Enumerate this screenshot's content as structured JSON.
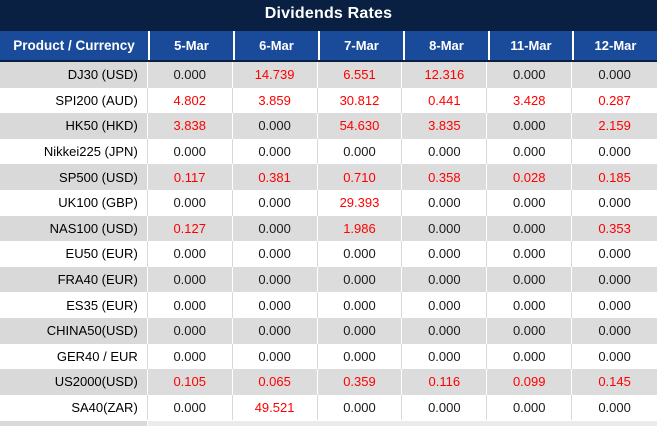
{
  "title": "Dividends Rates",
  "colors": {
    "title_background": "#0a2043",
    "header_background": "#1a4b9a",
    "banded_row_background": "#dcdcdc",
    "zero_value_text": "#1a1a1a",
    "nonzero_value_text": "#ff0000"
  },
  "table": {
    "product_header": "Product / Currency",
    "date_headers": [
      "5-Mar",
      "6-Mar",
      "7-Mar",
      "8-Mar",
      "11-Mar",
      "12-Mar"
    ],
    "rows": [
      {
        "product": "DJ30 (USD)",
        "values": [
          "0.000",
          "14.739",
          "6.551",
          "12.316",
          "0.000",
          "0.000"
        ]
      },
      {
        "product": "SPI200 (AUD)",
        "values": [
          "4.802",
          "3.859",
          "30.812",
          "0.441",
          "3.428",
          "0.287"
        ]
      },
      {
        "product": "HK50 (HKD)",
        "values": [
          "3.838",
          "0.000",
          "54.630",
          "3.835",
          "0.000",
          "2.159"
        ]
      },
      {
        "product": "Nikkei225 (JPN)",
        "values": [
          "0.000",
          "0.000",
          "0.000",
          "0.000",
          "0.000",
          "0.000"
        ]
      },
      {
        "product": "SP500 (USD)",
        "values": [
          "0.117",
          "0.381",
          "0.710",
          "0.358",
          "0.028",
          "0.185"
        ]
      },
      {
        "product": "UK100 (GBP)",
        "values": [
          "0.000",
          "0.000",
          "29.393",
          "0.000",
          "0.000",
          "0.000"
        ]
      },
      {
        "product": "NAS100 (USD)",
        "values": [
          "0.127",
          "0.000",
          "1.986",
          "0.000",
          "0.000",
          "0.353"
        ]
      },
      {
        "product": "EU50 (EUR)",
        "values": [
          "0.000",
          "0.000",
          "0.000",
          "0.000",
          "0.000",
          "0.000"
        ]
      },
      {
        "product": "FRA40 (EUR)",
        "values": [
          "0.000",
          "0.000",
          "0.000",
          "0.000",
          "0.000",
          "0.000"
        ]
      },
      {
        "product": "ES35 (EUR)",
        "values": [
          "0.000",
          "0.000",
          "0.000",
          "0.000",
          "0.000",
          "0.000"
        ]
      },
      {
        "product": "CHINA50(USD)",
        "values": [
          "0.000",
          "0.000",
          "0.000",
          "0.000",
          "0.000",
          "0.000"
        ]
      },
      {
        "product": "GER40 / EUR",
        "values": [
          "0.000",
          "0.000",
          "0.000",
          "0.000",
          "0.000",
          "0.000"
        ]
      },
      {
        "product": "US2000(USD)",
        "values": [
          "0.105",
          "0.065",
          "0.359",
          "0.116",
          "0.099",
          "0.145"
        ]
      },
      {
        "product": "SA40(ZAR)",
        "values": [
          "0.000",
          "49.521",
          "0.000",
          "0.000",
          "0.000",
          "0.000"
        ]
      }
    ]
  }
}
